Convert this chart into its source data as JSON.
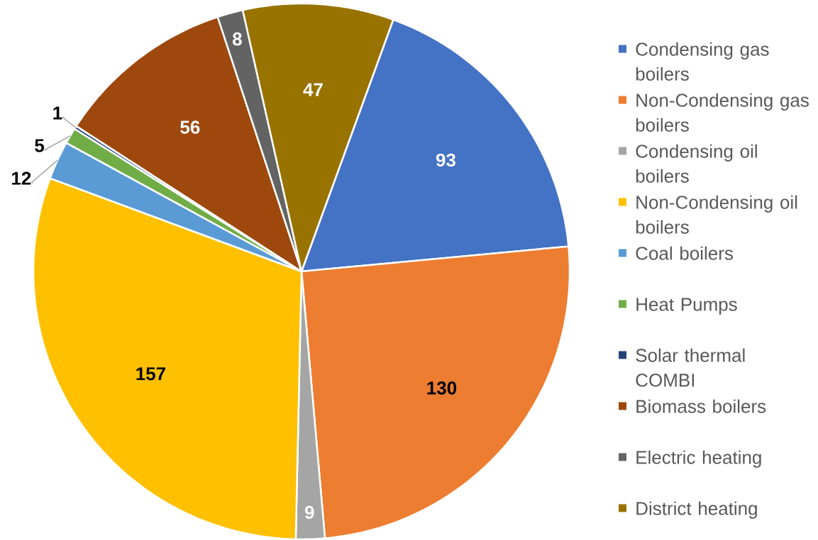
{
  "chart_data": {
    "type": "pie",
    "categories": [
      "Condensing gas boilers",
      "Non-Condensing gas boilers",
      "Condensing oil boilers",
      "Non-Condensing oil boilers",
      "Coal boilers",
      "Heat Pumps",
      "Solar thermal COMBI",
      "Biomass boilers",
      "Electric heating",
      "District heating"
    ],
    "values": [
      93,
      130,
      9,
      157,
      12,
      5,
      1,
      56,
      8,
      47
    ],
    "colors": [
      "#4472c4",
      "#ed7d31",
      "#a5a5a5",
      "#ffc000",
      "#5b9bd5",
      "#70ad47",
      "#264478",
      "#9e480e",
      "#636363",
      "#997300"
    ],
    "data_labels": true,
    "legend": "right"
  }
}
